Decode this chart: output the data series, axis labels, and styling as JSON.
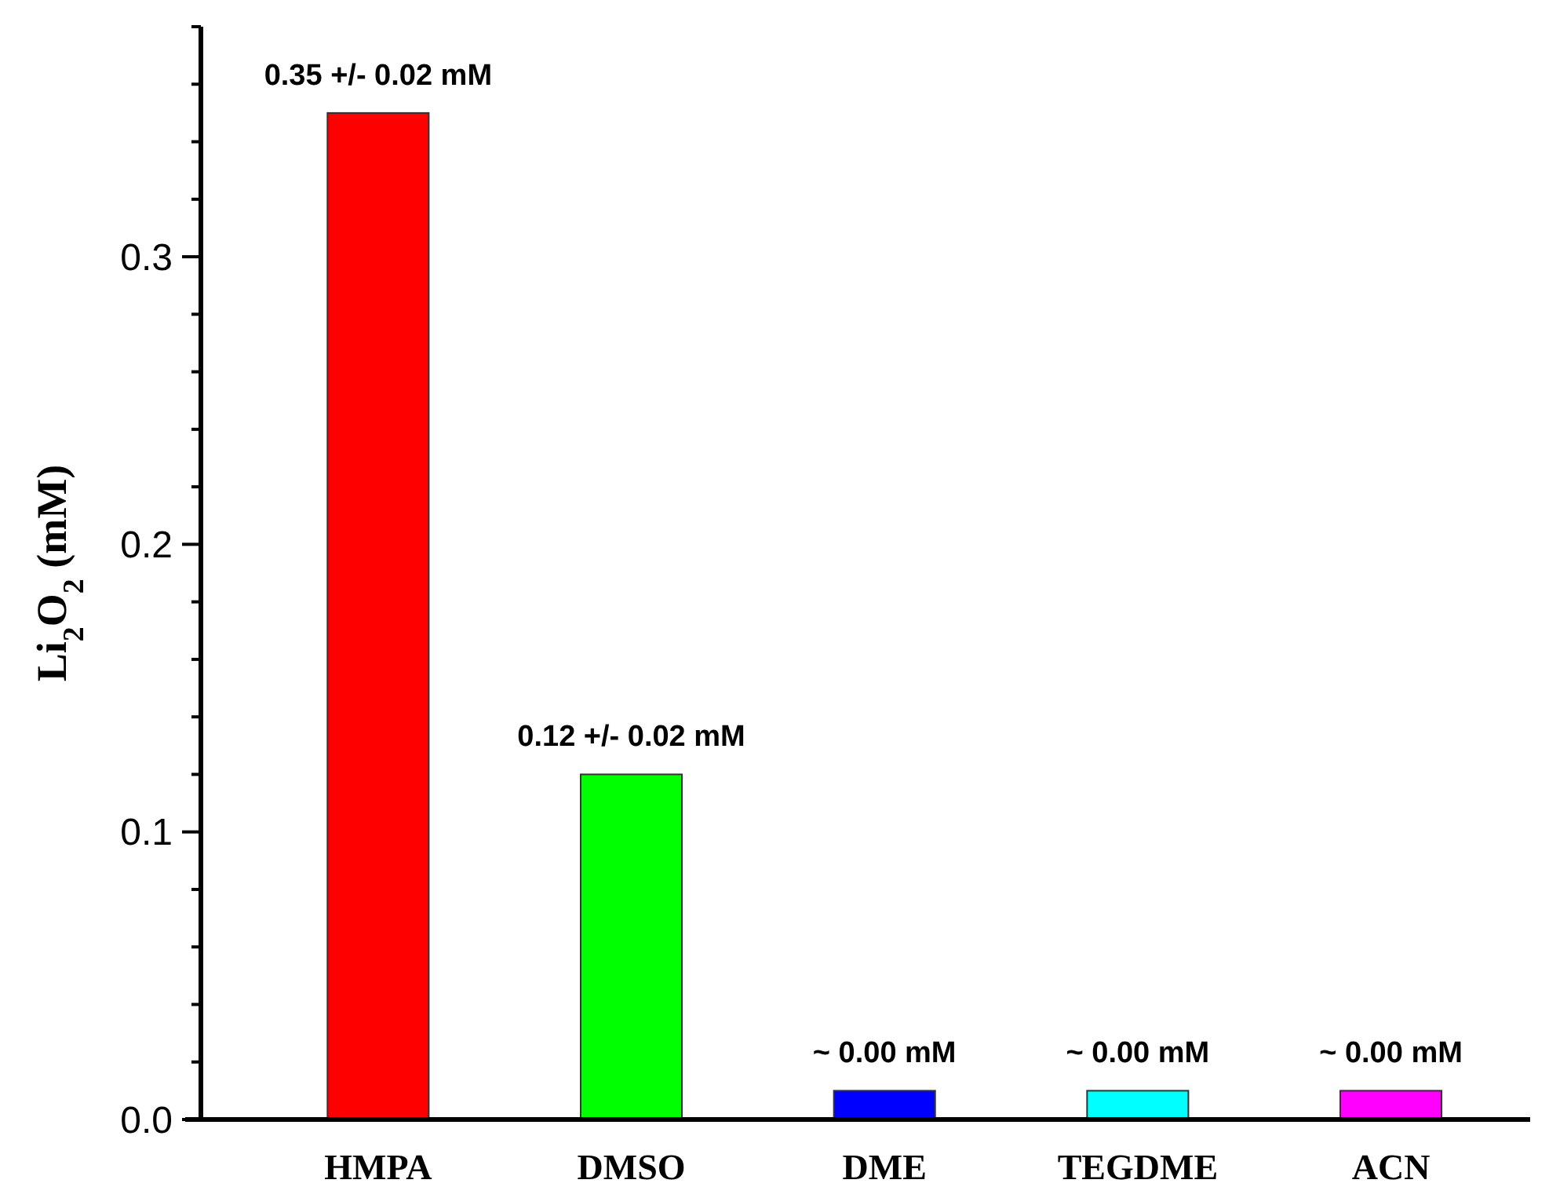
{
  "chart_data": {
    "type": "bar",
    "ylabel": "Li$_{2}$O$_{2}$ (mM)",
    "categories": [
      "HMPA",
      "DMSO",
      "DME",
      "TEGDME",
      "ACN"
    ],
    "values": [
      0.35,
      0.12,
      0.01,
      0.01,
      0.01
    ],
    "colors": [
      "#ff0000",
      "#00ff00",
      "#0000ff",
      "#00ffff",
      "#ff00ff"
    ],
    "value_labels": [
      "0.35 +/- 0.02 mM",
      "0.12 +/- 0.02 mM",
      null,
      null,
      null
    ],
    "annotations": [
      {
        "text": "~ 0.00 mM",
        "x": "DME",
        "y": 0.01
      },
      {
        "text": "~ 0.00 mM",
        "x": "TEGDME",
        "y": 0.01
      },
      {
        "text": "~ 0.00 mM",
        "x": "ACN",
        "y": 0.01
      }
    ],
    "ylim": [
      0,
      0.38
    ],
    "yticks": [
      {
        "value": 0,
        "label": "0.0"
      },
      {
        "value": 0.02,
        "label": null
      },
      {
        "value": 0.04,
        "label": null
      },
      {
        "value": 0.06,
        "label": null
      },
      {
        "value": 0.08,
        "label": null
      },
      0.1,
      {
        "value": 0.12,
        "label": null
      },
      {
        "value": 0.14,
        "label": null
      },
      {
        "value": 0.16,
        "label": null
      },
      {
        "value": 0.18,
        "label": null
      },
      0.2,
      {
        "value": 0.22,
        "label": null
      },
      {
        "value": 0.24,
        "label": null
      },
      {
        "value": 0.26,
        "label": null
      },
      {
        "value": 0.28,
        "label": null
      },
      0.3,
      {
        "value": 0.32,
        "label": null
      },
      {
        "value": 0.34,
        "label": null
      },
      {
        "value": 0.36,
        "label": null
      },
      {
        "value": 0.38,
        "label": null
      }
    ],
    "grid": false
  }
}
